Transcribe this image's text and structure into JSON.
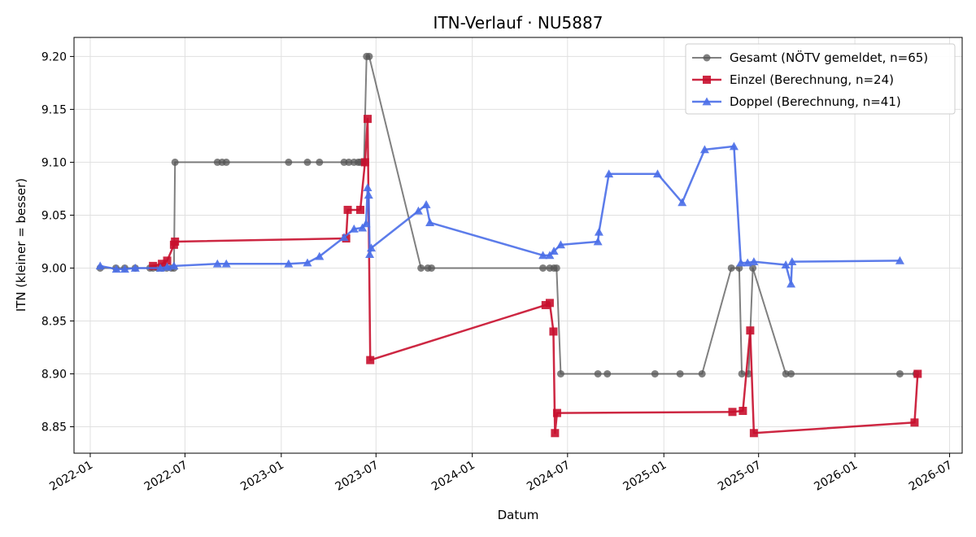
{
  "chart_data": {
    "type": "line",
    "title": "ITN-Verlauf · NU5887",
    "xlabel": "Datum",
    "ylabel": "ITN  (kleiner = besser)",
    "x_range": [
      "2021-12-01",
      "2026-07-25"
    ],
    "ylim": [
      8.825,
      9.218
    ],
    "x_ticks": [
      "2022-01",
      "2022-07",
      "2023-01",
      "2023-07",
      "2024-01",
      "2024-07",
      "2025-01",
      "2025-07",
      "2026-01",
      "2026-07"
    ],
    "y_ticks": [
      "8.85",
      "8.90",
      "8.95",
      "9.00",
      "9.05",
      "9.10",
      "9.15",
      "9.20"
    ],
    "grid": true,
    "legend_position": "top-right",
    "series": [
      {
        "name": "Gesamt (NÖTV gemeldet, n=65)",
        "color": "#555555",
        "marker": "circle",
        "points": [
          [
            "2022-01-20",
            9.0
          ],
          [
            "2022-02-19",
            9.0
          ],
          [
            "2022-03-08",
            9.0
          ],
          [
            "2022-03-28",
            9.0
          ],
          [
            "2022-04-25",
            9.0
          ],
          [
            "2022-05-01",
            9.0
          ],
          [
            "2022-05-10",
            9.0
          ],
          [
            "2022-05-18",
            9.0
          ],
          [
            "2022-05-27",
            9.0
          ],
          [
            "2022-06-05",
            9.0
          ],
          [
            "2022-06-10",
            9.0
          ],
          [
            "2022-06-12",
            9.1
          ],
          [
            "2022-09-01",
            9.1
          ],
          [
            "2022-09-10",
            9.1
          ],
          [
            "2022-09-18",
            9.1
          ],
          [
            "2023-01-15",
            9.1
          ],
          [
            "2023-02-20",
            9.1
          ],
          [
            "2023-03-15",
            9.1
          ],
          [
            "2023-05-01",
            9.1
          ],
          [
            "2023-05-10",
            9.1
          ],
          [
            "2023-05-20",
            9.1
          ],
          [
            "2023-05-28",
            9.1
          ],
          [
            "2023-06-01",
            9.1
          ],
          [
            "2023-06-08",
            9.1
          ],
          [
            "2023-06-13",
            9.2
          ],
          [
            "2023-06-18",
            9.2
          ],
          [
            "2023-09-25",
            9.0
          ],
          [
            "2023-10-08",
            9.0
          ],
          [
            "2023-10-15",
            9.0
          ],
          [
            "2024-05-15",
            9.0
          ],
          [
            "2024-05-28",
            9.0
          ],
          [
            "2024-06-05",
            9.0
          ],
          [
            "2024-06-10",
            9.0
          ],
          [
            "2024-06-18",
            8.9
          ],
          [
            "2024-08-28",
            8.9
          ],
          [
            "2024-09-15",
            8.9
          ],
          [
            "2024-12-15",
            8.9
          ],
          [
            "2025-02-01",
            8.9
          ],
          [
            "2025-03-15",
            8.9
          ],
          [
            "2025-05-10",
            9.0
          ],
          [
            "2025-05-25",
            9.0
          ],
          [
            "2025-05-30",
            8.9
          ],
          [
            "2025-06-12",
            8.9
          ],
          [
            "2025-06-20",
            9.0
          ],
          [
            "2025-08-22",
            8.9
          ],
          [
            "2025-09-01",
            8.9
          ],
          [
            "2026-03-28",
            8.9
          ],
          [
            "2026-04-28",
            8.9
          ]
        ]
      },
      {
        "name": "Einzel (Berechnung, n=24)",
        "color": "#c8102e",
        "marker": "square",
        "points": [
          [
            "2022-05-01",
            9.002
          ],
          [
            "2022-05-18",
            9.004
          ],
          [
            "2022-05-28",
            9.007
          ],
          [
            "2022-06-10",
            9.022
          ],
          [
            "2022-06-12",
            9.025
          ],
          [
            "2023-05-05",
            9.028
          ],
          [
            "2023-05-08",
            9.055
          ],
          [
            "2023-06-01",
            9.055
          ],
          [
            "2023-06-10",
            9.1
          ],
          [
            "2023-06-15",
            9.141
          ],
          [
            "2023-06-20",
            8.913
          ],
          [
            "2024-05-20",
            8.965
          ],
          [
            "2024-05-28",
            8.967
          ],
          [
            "2024-06-04",
            8.94
          ],
          [
            "2024-06-07",
            8.844
          ],
          [
            "2024-06-11",
            8.863
          ],
          [
            "2025-05-12",
            8.864
          ],
          [
            "2025-06-01",
            8.865
          ],
          [
            "2025-06-15",
            8.941
          ],
          [
            "2025-06-22",
            8.844
          ],
          [
            "2026-04-25",
            8.854
          ],
          [
            "2026-05-01",
            8.9
          ]
        ]
      },
      {
        "name": "Doppel (Berechnung, n=41)",
        "color": "#4a6ee8",
        "marker": "triangle",
        "points": [
          [
            "2022-01-20",
            9.002
          ],
          [
            "2022-02-20",
            8.999
          ],
          [
            "2022-03-08",
            8.999
          ],
          [
            "2022-03-28",
            9.0
          ],
          [
            "2022-05-15",
            9.0
          ],
          [
            "2022-05-28",
            9.001
          ],
          [
            "2022-06-10",
            9.002
          ],
          [
            "2022-09-01",
            9.004
          ],
          [
            "2022-09-18",
            9.004
          ],
          [
            "2023-01-15",
            9.004
          ],
          [
            "2023-02-20",
            9.005
          ],
          [
            "2023-03-15",
            9.011
          ],
          [
            "2023-05-01",
            9.029
          ],
          [
            "2023-05-20",
            9.037
          ],
          [
            "2023-06-05",
            9.038
          ],
          [
            "2023-06-12",
            9.042
          ],
          [
            "2023-06-15",
            9.076
          ],
          [
            "2023-06-17",
            9.069
          ],
          [
            "2023-06-19",
            9.013
          ],
          [
            "2023-06-22",
            9.019
          ],
          [
            "2023-09-20",
            9.054
          ],
          [
            "2023-10-05",
            9.06
          ],
          [
            "2023-10-12",
            9.043
          ],
          [
            "2024-05-15",
            9.012
          ],
          [
            "2024-05-28",
            9.012
          ],
          [
            "2024-06-05",
            9.016
          ],
          [
            "2024-06-18",
            9.022
          ],
          [
            "2024-08-28",
            9.025
          ],
          [
            "2024-08-30",
            9.034
          ],
          [
            "2024-09-18",
            9.089
          ],
          [
            "2024-12-20",
            9.089
          ],
          [
            "2025-02-05",
            9.062
          ],
          [
            "2025-03-20",
            9.112
          ],
          [
            "2025-05-15",
            9.115
          ],
          [
            "2025-05-28",
            9.005
          ],
          [
            "2025-06-10",
            9.005
          ],
          [
            "2025-06-22",
            9.006
          ],
          [
            "2025-08-22",
            9.003
          ],
          [
            "2025-09-01",
            8.985
          ],
          [
            "2025-09-03",
            9.006
          ],
          [
            "2026-03-28",
            9.007
          ]
        ]
      }
    ]
  }
}
